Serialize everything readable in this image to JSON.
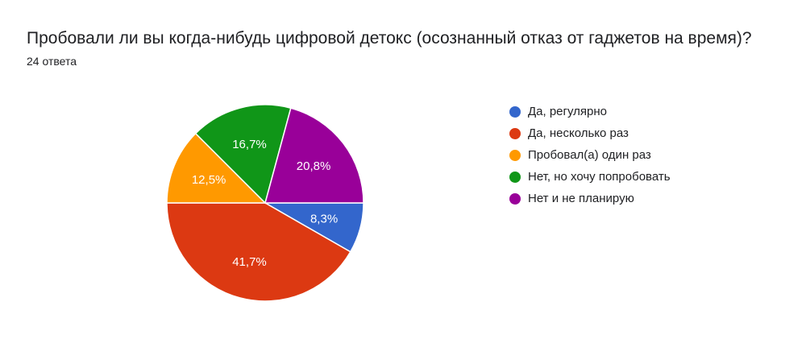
{
  "title": "Пробовали ли вы когда-нибудь цифровой детокс (осознанный отказ от гаджетов на время)?",
  "subtitle": "24 ответа",
  "chart_data": {
    "type": "pie",
    "legend_position": "right",
    "slices": [
      {
        "label": "Да, регулярно",
        "value": 8.3,
        "display": "8,3%",
        "color": "#3366cc"
      },
      {
        "label": "Да, несколько раз",
        "value": 41.7,
        "display": "41,7%",
        "color": "#dc3912"
      },
      {
        "label": "Пробовал(а) один раз",
        "value": 12.5,
        "display": "12,5%",
        "color": "#ff9900"
      },
      {
        "label": "Нет, но хочу попробовать",
        "value": 16.7,
        "display": "16,7%",
        "color": "#109618"
      },
      {
        "label": "Нет и не планирую",
        "value": 20.8,
        "display": "20,8%",
        "color": "#990099"
      }
    ]
  }
}
